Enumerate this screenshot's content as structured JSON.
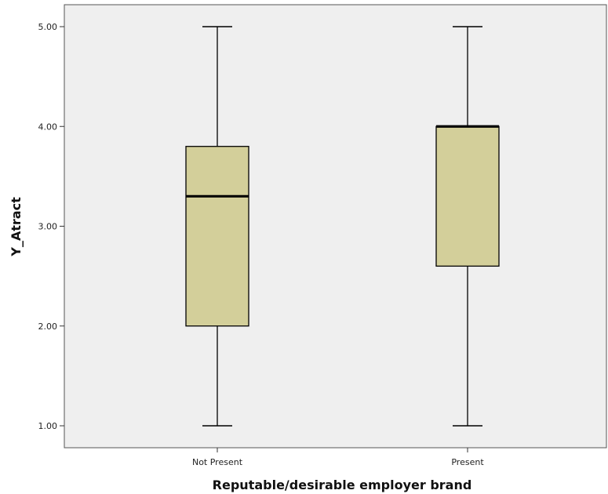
{
  "chart_data": {
    "type": "boxplot",
    "xlabel": "Reputable/desirable employer brand",
    "ylabel": "Y_Atract",
    "categories": [
      "Not Present",
      "Present"
    ],
    "boxes": [
      {
        "category": "Not Present",
        "min": 1.0,
        "q1": 2.0,
        "median": 3.3,
        "q3": 3.8,
        "max": 5.0
      },
      {
        "category": "Present",
        "min": 1.0,
        "q1": 2.6,
        "median": 4.0,
        "q3": 4.0,
        "max": 5.0
      }
    ],
    "yticks": [
      "1.00",
      "2.00",
      "3.00",
      "4.00",
      "5.00"
    ],
    "ylim": [
      0.8,
      5.2
    ],
    "grid": false,
    "colors": {
      "plot_bg": "#efefef",
      "box_fill": "#d3cf9a",
      "stroke": "#000000"
    }
  }
}
